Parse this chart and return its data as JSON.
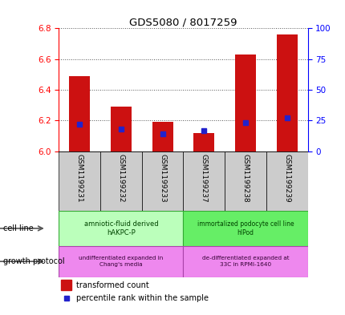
{
  "title": "GDS5080 / 8017259",
  "samples": [
    "GSM1199231",
    "GSM1199232",
    "GSM1199233",
    "GSM1199237",
    "GSM1199238",
    "GSM1199239"
  ],
  "transformed_counts": [
    6.49,
    6.29,
    6.19,
    6.12,
    6.63,
    6.76
  ],
  "percentile_ranks_mapped": [
    6.175,
    6.145,
    6.115,
    6.135,
    6.185,
    6.215
  ],
  "ylim_left": [
    6.0,
    6.8
  ],
  "ylim_right": [
    0,
    100
  ],
  "yticks_left": [
    6.0,
    6.2,
    6.4,
    6.6,
    6.8
  ],
  "yticks_right": [
    0,
    25,
    50,
    75,
    100
  ],
  "bar_color": "#cc1111",
  "dot_color": "#2222cc",
  "bar_width": 0.5,
  "gsm_bg": "#cccccc",
  "cell_line_label_left": "amniotic-fluid derived\nhAKPC-P",
  "cell_line_label_right": "immortalized podocyte cell line\nhIPod",
  "cell_line_color_left": "#bbffbb",
  "cell_line_color_right": "#66ee66",
  "cell_line_edge": "#33aa33",
  "growth_left": "undifferentiated expanded in\nChang's media",
  "growth_right": "de-differentiated expanded at\n33C in RPMI-1640",
  "growth_color": "#ee88ee",
  "growth_edge": "#aa44aa",
  "legend_text1": "transformed count",
  "legend_text2": "percentile rank within the sample",
  "label_cell_line": "cell line",
  "label_growth_protocol": "growth protocol",
  "grid_color": "#555555",
  "title_fontsize": 9.5,
  "tick_fontsize": 7.5,
  "label_fontsize": 7,
  "gsm_fontsize": 6.5
}
